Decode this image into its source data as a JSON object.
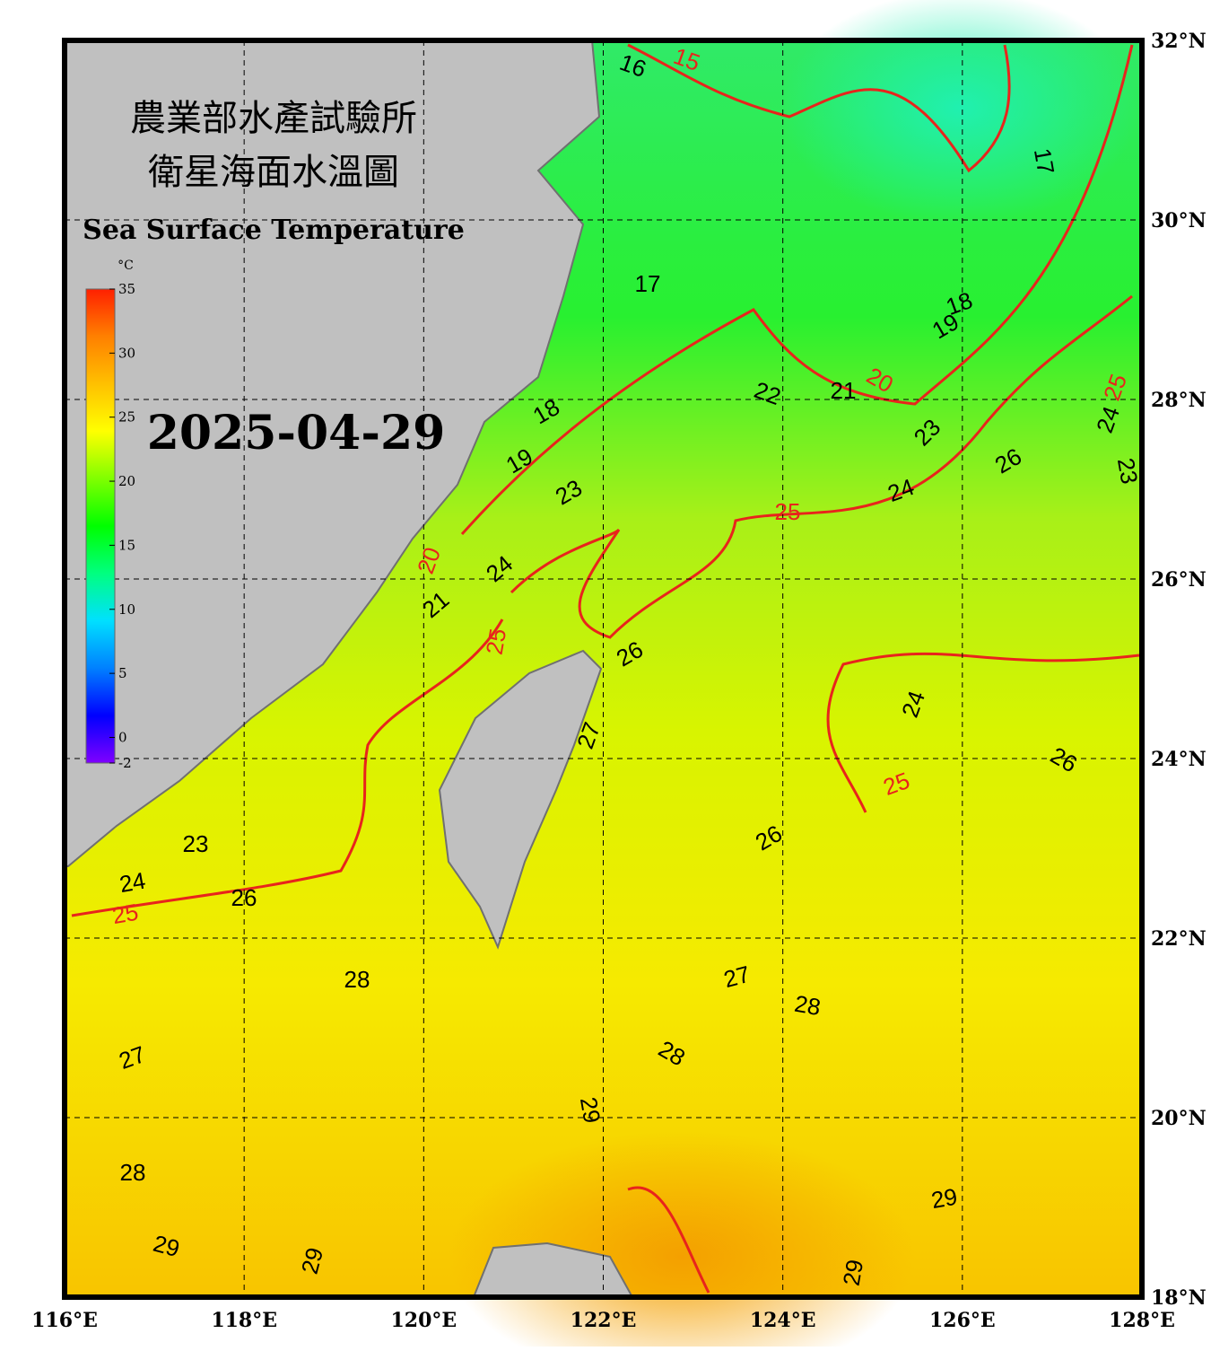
{
  "map": {
    "title_zh_1": "農業部水產試驗所",
    "title_zh_2": "衛星海面水溫圖",
    "title_en": "Sea Surface Temperature",
    "date": "2025-04-29",
    "colorbar": {
      "unit": "°C",
      "lim": [
        -2,
        35
      ],
      "ticks": [
        -2,
        0,
        5,
        10,
        15,
        20,
        25,
        30,
        35
      ],
      "colors": [
        "#8000ff",
        "#0000ff",
        "#0080ff",
        "#00e0ff",
        "#00ff80",
        "#00ff00",
        "#80ff00",
        "#ffff00",
        "#ffc000",
        "#ff8000",
        "#ff2000"
      ]
    },
    "xlim": [
      116,
      128
    ],
    "ylim": [
      18,
      32
    ],
    "xticks": [
      {
        "value": 116,
        "label": "116°E"
      },
      {
        "value": 118,
        "label": "118°E"
      },
      {
        "value": 120,
        "label": "120°E"
      },
      {
        "value": 122,
        "label": "122°E"
      },
      {
        "value": 124,
        "label": "124°E"
      },
      {
        "value": 126,
        "label": "126°E"
      },
      {
        "value": 128,
        "label": "128°E"
      }
    ],
    "yticks": [
      {
        "value": 18,
        "label": "18°N"
      },
      {
        "value": 20,
        "label": "20°N"
      },
      {
        "value": 22,
        "label": "22°N"
      },
      {
        "value": 24,
        "label": "24°N"
      },
      {
        "value": 26,
        "label": "26°N"
      },
      {
        "value": 28,
        "label": "28°N"
      },
      {
        "value": 30,
        "label": "30°N"
      },
      {
        "value": 32,
        "label": "32°N"
      }
    ],
    "contour_labels": [
      16,
      17,
      18,
      19,
      21,
      22,
      23,
      24,
      23,
      26,
      24,
      23,
      19,
      18,
      24,
      21,
      26,
      27,
      24,
      26,
      23,
      24,
      26,
      26,
      27,
      28,
      28,
      28,
      27,
      29,
      28,
      29,
      29,
      29,
      29,
      17
    ],
    "major_contour_labels": [
      15,
      20,
      25,
      25,
      20,
      25,
      25,
      25
    ],
    "major_contour_color": "#e8241c"
  }
}
